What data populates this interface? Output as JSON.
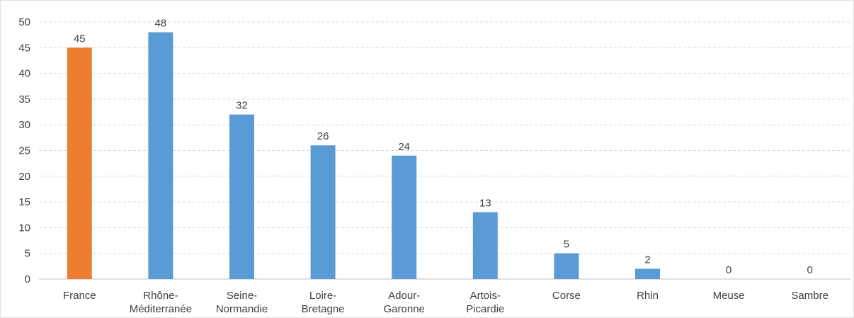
{
  "chart_data": {
    "type": "bar",
    "title": "",
    "xlabel": "",
    "ylabel": "",
    "ylim": [
      0,
      50
    ],
    "y_ticks": [
      0,
      5,
      10,
      15,
      20,
      25,
      30,
      35,
      40,
      45,
      50
    ],
    "grid": true,
    "legend": "none",
    "categories": [
      [
        "France"
      ],
      [
        "Rhône-",
        "Méditerranée"
      ],
      [
        "Seine-",
        "Normandie"
      ],
      [
        "Loire-",
        "Bretagne"
      ],
      [
        "Adour-",
        "Garonne"
      ],
      [
        "Artois-",
        "Picardie"
      ],
      [
        "Corse"
      ],
      [
        "Rhin"
      ],
      [
        "Meuse"
      ],
      [
        "Sambre"
      ]
    ],
    "values": [
      45,
      48,
      32,
      26,
      24,
      13,
      5,
      2,
      0,
      0
    ],
    "data_labels": [
      "45",
      "48",
      "32",
      "26",
      "24",
      "13",
      "5",
      "2",
      "0",
      "0"
    ],
    "bar_colors": [
      "#ED7D31",
      "#5B9BD5",
      "#5B9BD5",
      "#5B9BD5",
      "#5B9BD5",
      "#5B9BD5",
      "#5B9BD5",
      "#5B9BD5",
      "#5B9BD5",
      "#5B9BD5"
    ]
  },
  "colors": {
    "highlight": "#ED7D31",
    "bar": "#5B9BD5",
    "gridline": "#d9d9d9",
    "axis": "#bfbfbf",
    "text": "#404040"
  }
}
